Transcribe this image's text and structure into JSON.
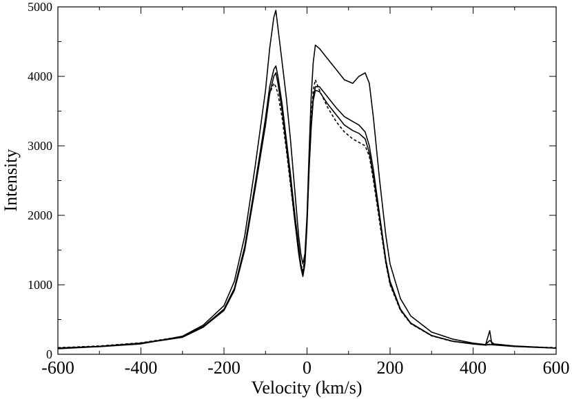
{
  "chart_data": {
    "type": "line",
    "title": "",
    "xlabel": "Velocity (km/s)",
    "ylabel": "Intensity",
    "xlim": [
      -600,
      600
    ],
    "ylim": [
      0,
      5000
    ],
    "x_ticks": [
      -600,
      -400,
      -200,
      0,
      200,
      400,
      600
    ],
    "y_ticks": [
      0,
      1000,
      2000,
      3000,
      4000,
      5000
    ],
    "grid": false,
    "legend": "none",
    "line_color": "#000000",
    "series": [
      {
        "style": "solid",
        "points": [
          [
            -600,
            80
          ],
          [
            -500,
            110
          ],
          [
            -400,
            150
          ],
          [
            -300,
            260
          ],
          [
            -250,
            420
          ],
          [
            -200,
            700
          ],
          [
            -175,
            1050
          ],
          [
            -150,
            1700
          ],
          [
            -125,
            2700
          ],
          [
            -100,
            3800
          ],
          [
            -90,
            4400
          ],
          [
            -80,
            4850
          ],
          [
            -75,
            4950
          ],
          [
            -70,
            4700
          ],
          [
            -60,
            4200
          ],
          [
            -50,
            3700
          ],
          [
            -40,
            3100
          ],
          [
            -30,
            2400
          ],
          [
            -20,
            1700
          ],
          [
            -15,
            1450
          ],
          [
            -10,
            1300
          ],
          [
            -5,
            1450
          ],
          [
            0,
            2000
          ],
          [
            5,
            2900
          ],
          [
            10,
            3700
          ],
          [
            15,
            4200
          ],
          [
            20,
            4450
          ],
          [
            30,
            4400
          ],
          [
            50,
            4250
          ],
          [
            70,
            4100
          ],
          [
            90,
            3950
          ],
          [
            110,
            3900
          ],
          [
            125,
            4000
          ],
          [
            140,
            4050
          ],
          [
            150,
            3900
          ],
          [
            160,
            3400
          ],
          [
            175,
            2500
          ],
          [
            190,
            1700
          ],
          [
            200,
            1300
          ],
          [
            225,
            800
          ],
          [
            250,
            550
          ],
          [
            300,
            320
          ],
          [
            350,
            220
          ],
          [
            400,
            160
          ],
          [
            430,
            140
          ],
          [
            440,
            200
          ],
          [
            450,
            150
          ],
          [
            500,
            120
          ],
          [
            600,
            90
          ]
        ]
      },
      {
        "style": "solid",
        "points": [
          [
            -600,
            90
          ],
          [
            -500,
            115
          ],
          [
            -400,
            160
          ],
          [
            -300,
            250
          ],
          [
            -250,
            400
          ],
          [
            -200,
            650
          ],
          [
            -175,
            950
          ],
          [
            -150,
            1550
          ],
          [
            -125,
            2450
          ],
          [
            -100,
            3400
          ],
          [
            -90,
            3850
          ],
          [
            -80,
            4100
          ],
          [
            -75,
            4150
          ],
          [
            -70,
            4000
          ],
          [
            -60,
            3600
          ],
          [
            -50,
            3100
          ],
          [
            -40,
            2600
          ],
          [
            -30,
            2050
          ],
          [
            -20,
            1550
          ],
          [
            -15,
            1300
          ],
          [
            -10,
            1150
          ],
          [
            -5,
            1350
          ],
          [
            0,
            1900
          ],
          [
            5,
            2700
          ],
          [
            10,
            3300
          ],
          [
            15,
            3700
          ],
          [
            20,
            3850
          ],
          [
            30,
            3850
          ],
          [
            50,
            3700
          ],
          [
            70,
            3550
          ],
          [
            90,
            3420
          ],
          [
            110,
            3350
          ],
          [
            125,
            3300
          ],
          [
            140,
            3200
          ],
          [
            150,
            3000
          ],
          [
            160,
            2650
          ],
          [
            175,
            2000
          ],
          [
            190,
            1350
          ],
          [
            200,
            1050
          ],
          [
            225,
            650
          ],
          [
            250,
            450
          ],
          [
            300,
            270
          ],
          [
            350,
            190
          ],
          [
            400,
            150
          ],
          [
            430,
            135
          ],
          [
            440,
            340
          ],
          [
            445,
            150
          ],
          [
            500,
            115
          ],
          [
            600,
            90
          ]
        ]
      },
      {
        "style": "dashed",
        "points": [
          [
            -600,
            95
          ],
          [
            -500,
            120
          ],
          [
            -400,
            165
          ],
          [
            -300,
            255
          ],
          [
            -250,
            400
          ],
          [
            -200,
            640
          ],
          [
            -175,
            930
          ],
          [
            -150,
            1520
          ],
          [
            -125,
            2400
          ],
          [
            -100,
            3350
          ],
          [
            -90,
            3750
          ],
          [
            -80,
            3900
          ],
          [
            -75,
            3850
          ],
          [
            -70,
            3750
          ],
          [
            -60,
            3400
          ],
          [
            -50,
            2950
          ],
          [
            -40,
            2450
          ],
          [
            -30,
            1950
          ],
          [
            -20,
            1500
          ],
          [
            -15,
            1300
          ],
          [
            -10,
            1200
          ],
          [
            -5,
            1400
          ],
          [
            0,
            1950
          ],
          [
            5,
            2800
          ],
          [
            10,
            3400
          ],
          [
            15,
            3800
          ],
          [
            20,
            3950
          ],
          [
            30,
            3800
          ],
          [
            50,
            3550
          ],
          [
            70,
            3350
          ],
          [
            90,
            3200
          ],
          [
            110,
            3100
          ],
          [
            125,
            3050
          ],
          [
            140,
            3000
          ],
          [
            150,
            2850
          ],
          [
            160,
            2500
          ],
          [
            175,
            1900
          ],
          [
            190,
            1300
          ],
          [
            200,
            1000
          ],
          [
            225,
            630
          ],
          [
            250,
            440
          ],
          [
            300,
            265
          ],
          [
            350,
            185
          ],
          [
            400,
            150
          ],
          [
            430,
            135
          ],
          [
            440,
            145
          ],
          [
            500,
            115
          ],
          [
            600,
            95
          ]
        ]
      },
      {
        "style": "solid",
        "points": [
          [
            -600,
            85
          ],
          [
            -500,
            112
          ],
          [
            -400,
            155
          ],
          [
            -300,
            245
          ],
          [
            -250,
            390
          ],
          [
            -200,
            630
          ],
          [
            -175,
            920
          ],
          [
            -150,
            1500
          ],
          [
            -125,
            2380
          ],
          [
            -100,
            3300
          ],
          [
            -90,
            3750
          ],
          [
            -80,
            4000
          ],
          [
            -75,
            4050
          ],
          [
            -70,
            3900
          ],
          [
            -60,
            3500
          ],
          [
            -50,
            3000
          ],
          [
            -40,
            2500
          ],
          [
            -30,
            1950
          ],
          [
            -20,
            1450
          ],
          [
            -15,
            1250
          ],
          [
            -10,
            1120
          ],
          [
            -5,
            1300
          ],
          [
            0,
            1850
          ],
          [
            5,
            2650
          ],
          [
            10,
            3250
          ],
          [
            15,
            3650
          ],
          [
            20,
            3800
          ],
          [
            30,
            3780
          ],
          [
            50,
            3600
          ],
          [
            70,
            3450
          ],
          [
            90,
            3300
          ],
          [
            110,
            3220
          ],
          [
            125,
            3180
          ],
          [
            140,
            3100
          ],
          [
            150,
            2900
          ],
          [
            160,
            2550
          ],
          [
            175,
            1950
          ],
          [
            190,
            1320
          ],
          [
            200,
            1020
          ],
          [
            225,
            640
          ],
          [
            250,
            445
          ],
          [
            300,
            268
          ],
          [
            350,
            188
          ],
          [
            400,
            148
          ],
          [
            430,
            132
          ],
          [
            440,
            140
          ],
          [
            500,
            112
          ],
          [
            600,
            88
          ]
        ]
      }
    ]
  }
}
